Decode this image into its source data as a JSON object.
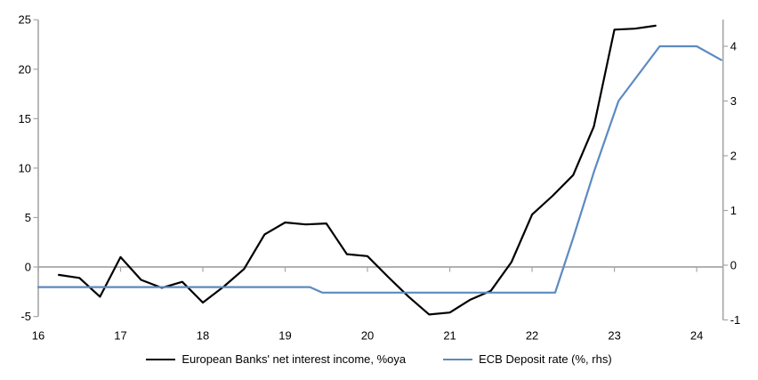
{
  "chart_data": {
    "type": "line",
    "title": "",
    "xlabel": "",
    "ylabel_left": "",
    "ylabel_right": "",
    "grid": "zero-line-only",
    "legend_position": "bottom",
    "background_color": "#ffffff",
    "axis_color": "#a6a6a6",
    "tick_label_color": "#000000",
    "x_axis": {
      "range": [
        16,
        24.32
      ],
      "ticks": [
        16,
        17,
        18,
        19,
        20,
        21,
        22,
        23,
        24
      ]
    },
    "left_axis": {
      "range": [
        -5,
        25
      ],
      "ticks": [
        -5,
        0,
        5,
        10,
        15,
        20,
        25
      ]
    },
    "right_axis": {
      "range": [
        -1,
        4.5
      ],
      "ticks": [
        -1,
        0,
        1,
        2,
        3,
        4
      ]
    },
    "series": [
      {
        "name": "European Banks' net interest income, %oya",
        "axis": "left",
        "color": "#000000",
        "points": [
          [
            16.25,
            -0.8
          ],
          [
            16.5,
            -1.1
          ],
          [
            16.75,
            -3.0
          ],
          [
            17.0,
            1.0
          ],
          [
            17.25,
            -1.3
          ],
          [
            17.5,
            -2.1
          ],
          [
            17.75,
            -1.5
          ],
          [
            18.0,
            -3.6
          ],
          [
            18.25,
            -2.0
          ],
          [
            18.5,
            -0.2
          ],
          [
            18.75,
            3.3
          ],
          [
            19.0,
            4.5
          ],
          [
            19.25,
            4.3
          ],
          [
            19.5,
            4.4
          ],
          [
            19.75,
            1.3
          ],
          [
            20.0,
            1.1
          ],
          [
            20.25,
            -1.0
          ],
          [
            20.5,
            -3.0
          ],
          [
            20.75,
            -4.8
          ],
          [
            21.0,
            -4.6
          ],
          [
            21.25,
            -3.3
          ],
          [
            21.5,
            -2.4
          ],
          [
            21.75,
            0.5
          ],
          [
            22.0,
            5.3
          ],
          [
            22.25,
            7.2
          ],
          [
            22.5,
            9.3
          ],
          [
            22.75,
            14.2
          ],
          [
            23.0,
            24.0
          ],
          [
            23.25,
            24.1
          ],
          [
            23.5,
            24.4
          ]
        ]
      },
      {
        "name": "ECB Deposit rate (%, rhs)",
        "axis": "right",
        "color": "#5b8ac2",
        "points": [
          [
            16.0,
            -0.4
          ],
          [
            19.3,
            -0.4
          ],
          [
            19.45,
            -0.5
          ],
          [
            22.28,
            -0.5
          ],
          [
            22.5,
            0.5
          ],
          [
            22.75,
            1.7
          ],
          [
            23.05,
            3.0
          ],
          [
            23.55,
            4.0
          ],
          [
            24.0,
            4.0
          ],
          [
            24.3,
            3.75
          ]
        ]
      }
    ]
  },
  "legend": {
    "item1_label": "European Banks' net interest income, %oya",
    "item2_label": "ECB Deposit rate (%, rhs)"
  }
}
